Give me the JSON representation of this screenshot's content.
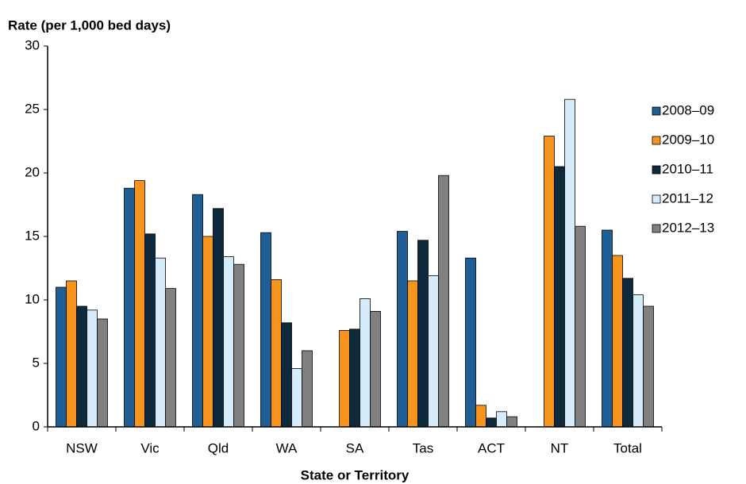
{
  "chart_data": {
    "type": "bar",
    "y_label": "Rate (per 1,000 bed days)",
    "x_label": "State or Territory",
    "categories": [
      "NSW",
      "Vic",
      "Qld",
      "WA",
      "SA",
      "Tas",
      "ACT",
      "NT",
      "Total"
    ],
    "series": [
      {
        "name": "2008–09",
        "color": "#1f5f96",
        "values": [
          11.0,
          18.8,
          18.3,
          15.3,
          null,
          15.4,
          13.3,
          null,
          15.5
        ]
      },
      {
        "name": "2009–10",
        "color": "#f7941d",
        "values": [
          11.5,
          19.4,
          15.0,
          11.6,
          7.6,
          11.5,
          1.7,
          22.9,
          13.5
        ]
      },
      {
        "name": "2010–11",
        "color": "#0d2a3d",
        "values": [
          9.5,
          15.2,
          17.2,
          8.2,
          7.7,
          14.7,
          0.7,
          20.5,
          11.7
        ]
      },
      {
        "name": "2011–12",
        "color": "#d6ecfa",
        "values": [
          9.2,
          13.3,
          13.4,
          4.6,
          10.1,
          11.9,
          1.2,
          25.8,
          10.4
        ]
      },
      {
        "name": "2012–13",
        "color": "#808080",
        "values": [
          8.5,
          10.9,
          12.8,
          6.0,
          9.1,
          19.8,
          0.8,
          15.8,
          9.5
        ]
      }
    ],
    "ylim": [
      0,
      30
    ],
    "yticks": [
      0,
      5,
      10,
      15,
      20,
      25,
      30
    ],
    "grid": false,
    "legend": "right"
  }
}
